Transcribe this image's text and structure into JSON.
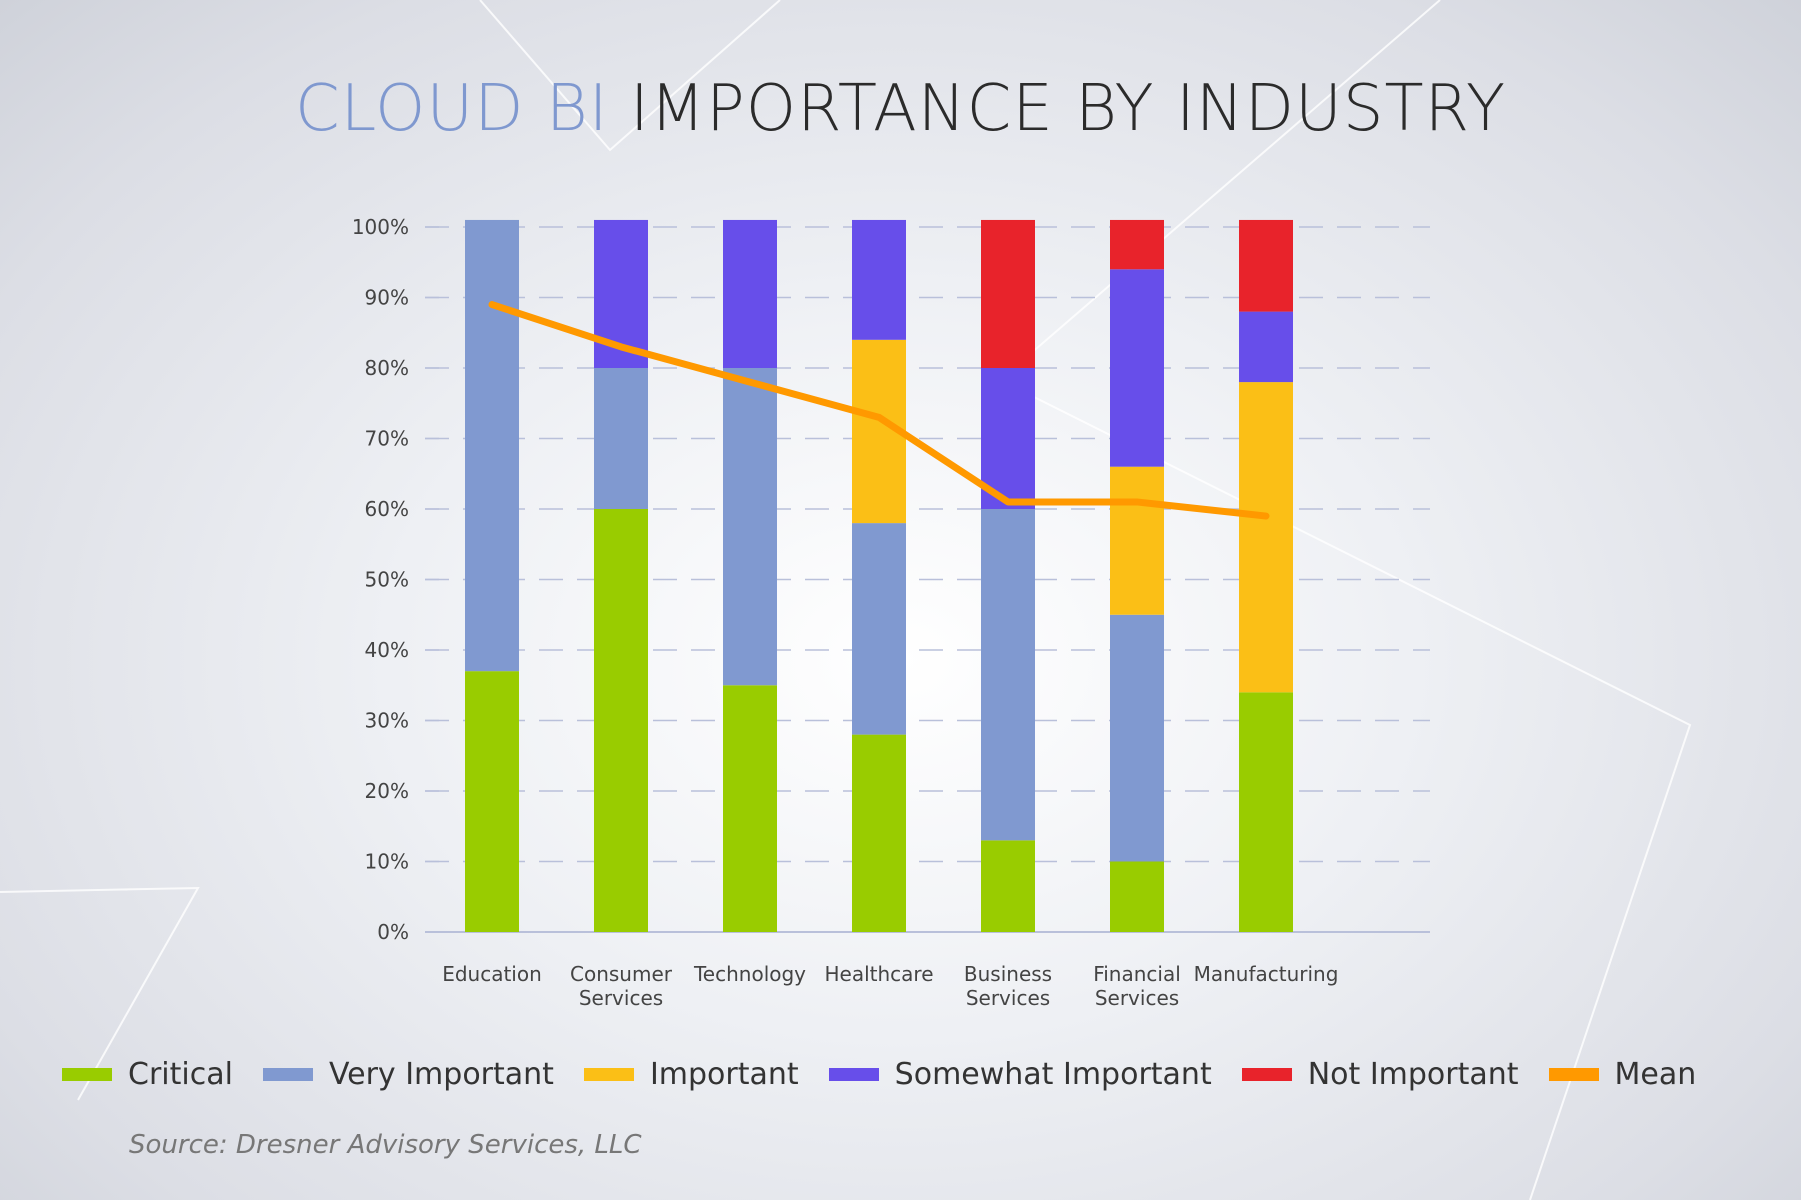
{
  "title": {
    "accent": "CLOUD BI",
    "main": "IMPORTANCE BY INDUSTRY"
  },
  "source": "Source: Dresner Advisory Services, LLC",
  "colors": {
    "critical": "#99cc00",
    "very_important": "#8099d0",
    "important": "#fbbf16",
    "somewhat_important": "#674eea",
    "not_important": "#e8232b",
    "mean": "#ff9900",
    "grid": "#b9c0da",
    "axis": "#b9c0da",
    "tick_text": "#444444"
  },
  "legend": [
    {
      "label": "Critical",
      "color": "#99cc00"
    },
    {
      "label": "Very  Important",
      "color": "#8099d0"
    },
    {
      "label": "Important",
      "color": "#fbbf16"
    },
    {
      "label": "Somewhat Important",
      "color": "#674eea"
    },
    {
      "label": "Not Important",
      "color": "#e8232b"
    },
    {
      "label": "Mean",
      "color": "#ff9900"
    }
  ],
  "chart_data": {
    "type": "bar",
    "stacked": true,
    "categories": [
      [
        "Education"
      ],
      [
        "Consumer",
        "Services"
      ],
      [
        "Technology"
      ],
      [
        "Healthcare"
      ],
      [
        "Business",
        "Services"
      ],
      [
        "Financial",
        "Services"
      ],
      [
        "Manufacturing"
      ]
    ],
    "series": [
      {
        "name": "Critical",
        "values": [
          37,
          60,
          35,
          28,
          13,
          10,
          34
        ]
      },
      {
        "name": "Very  Important",
        "values": [
          64,
          20,
          45,
          30,
          47,
          35,
          0
        ]
      },
      {
        "name": "Important",
        "values": [
          0,
          0,
          0,
          26,
          0,
          21,
          44
        ]
      },
      {
        "name": "Somewhat Important",
        "values": [
          0,
          21,
          21,
          17,
          20,
          28,
          10
        ]
      },
      {
        "name": "Not Important",
        "values": [
          0,
          0,
          0,
          0,
          21,
          7,
          13
        ]
      }
    ],
    "line_series": {
      "name": "Mean",
      "values": [
        89,
        83,
        78,
        73,
        61,
        61,
        59
      ]
    },
    "ylim": [
      0,
      100
    ],
    "yticks": [
      "0%",
      "10%",
      "20%",
      "30%",
      "40%",
      "50%",
      "60%",
      "70%",
      "80%",
      "90%",
      "100%"
    ],
    "grid": true,
    "legend_position": "bottom"
  }
}
